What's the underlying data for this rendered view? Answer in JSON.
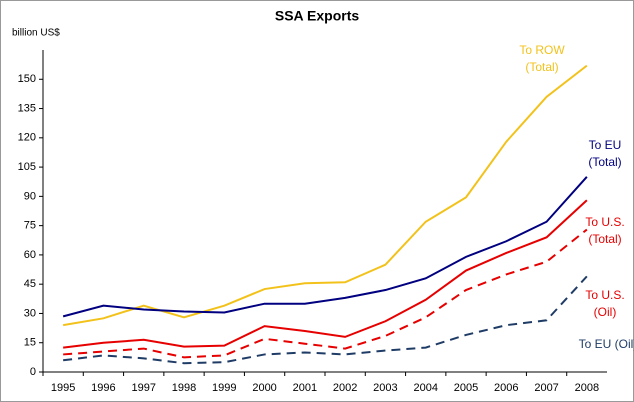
{
  "chart_data": {
    "type": "line",
    "title": "SSA Exports",
    "y_label": "billion US$",
    "categories": [
      "1995",
      "1996",
      "1997",
      "1998",
      "1999",
      "2000",
      "2001",
      "2002",
      "2003",
      "2004",
      "2005",
      "2006",
      "2007",
      "2008"
    ],
    "ylim": [
      0,
      165
    ],
    "yticks": [
      0,
      15,
      30,
      45,
      60,
      75,
      90,
      105,
      120,
      135,
      150
    ],
    "grid": false,
    "series": [
      {
        "name": "To ROW (Total)",
        "color": "#f2c21b",
        "dash": false,
        "values": [
          24,
          27.5,
          34,
          28,
          34,
          42.5,
          45.5,
          46,
          55,
          77,
          89.5,
          118,
          141,
          157
        ]
      },
      {
        "name": "To EU (Total)",
        "color": "#000080",
        "dash": false,
        "values": [
          28.5,
          34,
          32,
          31,
          30.5,
          35,
          35,
          38,
          42,
          48,
          59,
          67,
          77,
          100
        ]
      },
      {
        "name": "To U.S. (Total)",
        "color": "#e60000",
        "dash": false,
        "values": [
          12.5,
          15,
          16.5,
          13,
          13.5,
          23.5,
          21,
          18,
          26,
          37,
          52,
          61,
          69,
          88
        ]
      },
      {
        "name": "To U.S. (Oil)",
        "color": "#e60000",
        "dash": true,
        "values": [
          9,
          10.5,
          12,
          7.5,
          8.5,
          17,
          14.5,
          12,
          18.5,
          28,
          42,
          50,
          56.5,
          73
        ]
      },
      {
        "name": "To EU (Oil)",
        "color": "#1f3c66",
        "dash": true,
        "values": [
          6,
          8.5,
          7,
          4.5,
          5,
          9,
          10,
          9,
          11,
          12.5,
          19,
          24,
          26.5,
          49
        ]
      }
    ]
  }
}
